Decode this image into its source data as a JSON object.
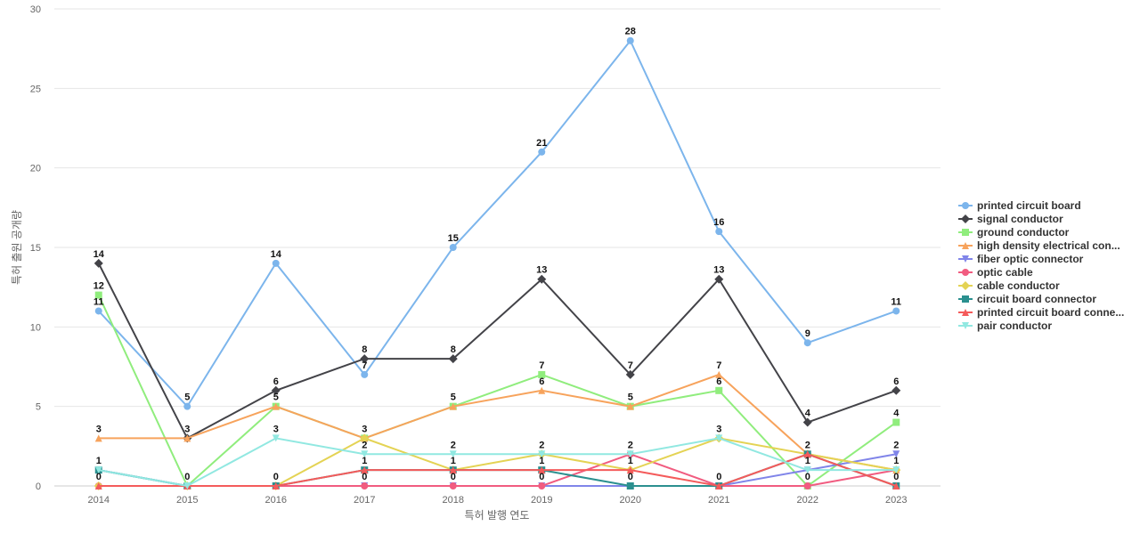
{
  "chart_data": {
    "type": "line",
    "xlabel": "특허 발행 연도",
    "ylabel": "특허 출원 공개량",
    "categories": [
      "2014",
      "2015",
      "2016",
      "2017",
      "2018",
      "2019",
      "2020",
      "2021",
      "2022",
      "2023"
    ],
    "ylim": [
      0,
      30
    ],
    "yticks": [
      0,
      5,
      10,
      15,
      20,
      25,
      30
    ],
    "grid": true,
    "legend_position": "right",
    "series": [
      {
        "name": "printed circuit board",
        "legend_label": "printed circuit board",
        "color": "#7cb5ec",
        "marker": "circle",
        "values": [
          11,
          5,
          14,
          7,
          15,
          21,
          28,
          16,
          9,
          11
        ]
      },
      {
        "name": "signal conductor",
        "legend_label": "signal conductor",
        "color": "#434348",
        "marker": "diamond",
        "values": [
          14,
          3,
          6,
          8,
          8,
          13,
          7,
          13,
          4,
          6
        ]
      },
      {
        "name": "ground conductor",
        "legend_label": "ground conductor",
        "color": "#90ed7d",
        "marker": "square",
        "values": [
          12,
          0,
          5,
          3,
          5,
          7,
          5,
          6,
          0,
          4
        ]
      },
      {
        "name": "high density electrical connector",
        "legend_label": "high density electrical con...",
        "color": "#f7a35c",
        "marker": "triangle",
        "values": [
          3,
          3,
          5,
          3,
          5,
          6,
          5,
          7,
          2,
          1
        ]
      },
      {
        "name": "fiber optic connector",
        "legend_label": "fiber optic connector",
        "color": "#8085e9",
        "marker": "triangle-down",
        "values": [
          1,
          0,
          0,
          0,
          0,
          0,
          0,
          0,
          1,
          2
        ]
      },
      {
        "name": "optic cable",
        "legend_label": "optic cable",
        "color": "#f15c80",
        "marker": "circle",
        "values": [
          0,
          0,
          0,
          0,
          0,
          0,
          2,
          0,
          0,
          1
        ]
      },
      {
        "name": "cable conductor",
        "legend_label": "cable conductor",
        "color": "#e4d354",
        "marker": "diamond",
        "values": [
          0,
          0,
          0,
          3,
          1,
          2,
          1,
          3,
          2,
          1
        ]
      },
      {
        "name": "circuit board connector",
        "legend_label": "circuit board connector",
        "color": "#2b908f",
        "marker": "square",
        "values": [
          1,
          0,
          0,
          1,
          1,
          1,
          0,
          0,
          2,
          0
        ]
      },
      {
        "name": "printed circuit board connector",
        "legend_label": "printed circuit board conne...",
        "color": "#f45b5b",
        "marker": "triangle",
        "values": [
          0,
          0,
          0,
          1,
          1,
          1,
          1,
          0,
          2,
          0
        ]
      },
      {
        "name": "pair conductor",
        "legend_label": "pair conductor",
        "color": "#91e8e1",
        "marker": "triangle-down",
        "values": [
          1,
          0,
          3,
          2,
          2,
          2,
          2,
          3,
          1,
          1
        ]
      }
    ],
    "data_label_annotations": [
      {
        "category": "2014",
        "values": [
          14,
          12,
          11,
          3,
          1,
          0
        ]
      },
      {
        "category": "2015",
        "values": [
          5,
          3,
          0
        ]
      },
      {
        "category": "2016",
        "values": [
          14,
          6,
          5,
          3,
          0
        ]
      },
      {
        "category": "2017",
        "values": [
          8,
          7,
          3,
          2,
          1,
          0
        ]
      },
      {
        "category": "2018",
        "values": [
          15,
          8,
          5,
          2,
          1,
          0
        ]
      },
      {
        "category": "2019",
        "values": [
          21,
          13,
          7,
          6,
          2,
          1,
          0
        ]
      },
      {
        "category": "2020",
        "values": [
          28,
          7,
          5,
          2,
          1,
          0
        ]
      },
      {
        "category": "2021",
        "values": [
          16,
          13,
          7,
          6,
          3,
          0
        ]
      },
      {
        "category": "2022",
        "values": [
          9,
          4,
          2,
          1,
          0
        ]
      },
      {
        "category": "2023",
        "values": [
          11,
          6,
          4,
          2,
          1,
          0
        ]
      }
    ]
  }
}
